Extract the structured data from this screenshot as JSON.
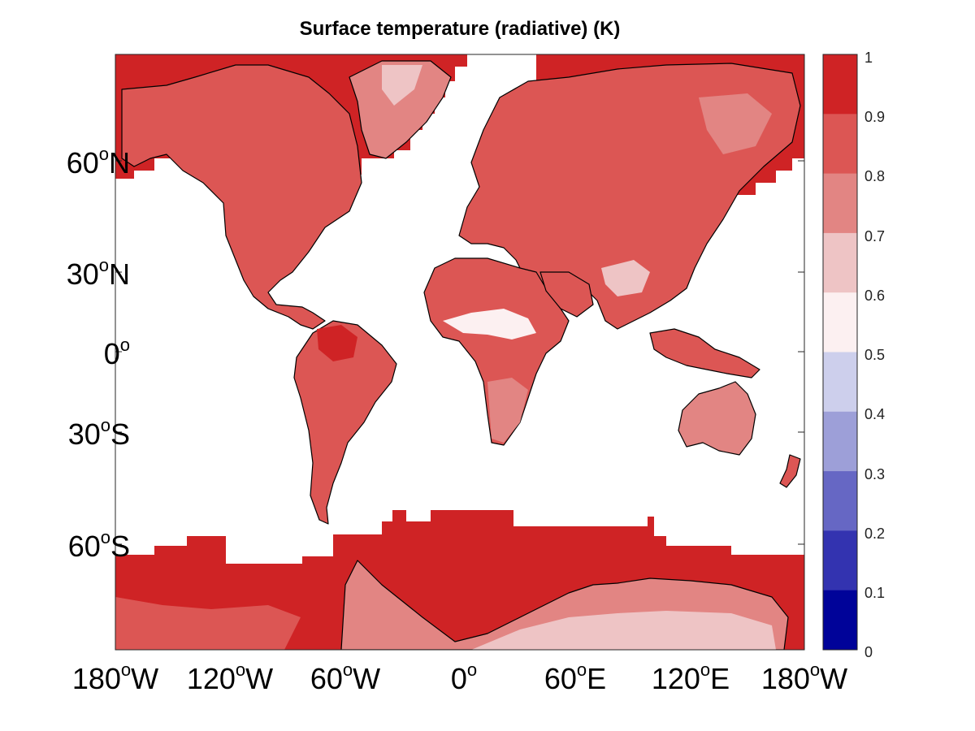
{
  "title": "Surface temperature (radiative) (K)",
  "y_ticks": [
    {
      "num": "60",
      "deg": "o",
      "hem": "N"
    },
    {
      "num": "30",
      "deg": "o",
      "hem": "N"
    },
    {
      "num": "0",
      "deg": "o",
      "hem": ""
    },
    {
      "num": "30",
      "deg": "o",
      "hem": "S"
    },
    {
      "num": "60",
      "deg": "o",
      "hem": "S"
    }
  ],
  "x_ticks": [
    {
      "num": "180",
      "deg": "o",
      "hem": "W"
    },
    {
      "num": "120",
      "deg": "o",
      "hem": "W"
    },
    {
      "num": "60",
      "deg": "o",
      "hem": "W"
    },
    {
      "num": "0",
      "deg": "o",
      "hem": ""
    },
    {
      "num": "60",
      "deg": "o",
      "hem": "E"
    },
    {
      "num": "120",
      "deg": "o",
      "hem": "E"
    },
    {
      "num": "180",
      "deg": "o",
      "hem": "W"
    }
  ],
  "colorbar": {
    "labels": [
      "1",
      "0.9",
      "0.8",
      "0.7",
      "0.6",
      "0.5",
      "0.4",
      "0.3",
      "0.2",
      "0.1",
      "0"
    ],
    "colors": [
      "#cf2325",
      "#dc5654",
      "#e28583",
      "#eec4c5",
      "#fcf0f1",
      "#cdcfec",
      "#9d9fd8",
      "#6667c4",
      "#3333b0",
      "#000399"
    ]
  },
  "map_colors": {
    "ocean": "#ffffff",
    "land_base": "#dc5654",
    "high": "#cf2325",
    "mid": "#e28583",
    "light": "#eec4c5",
    "pale": "#fcf0f1",
    "coast": "#000000"
  }
}
